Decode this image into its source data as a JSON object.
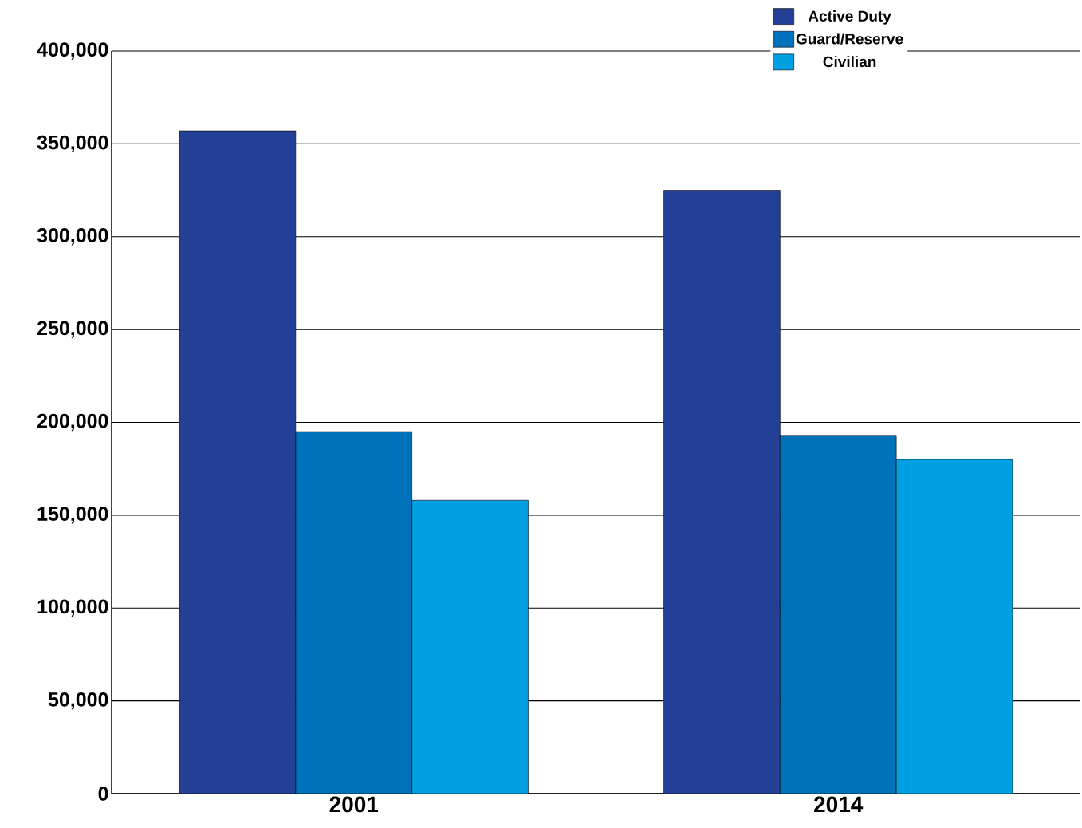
{
  "chart_data": {
    "type": "bar",
    "categories": [
      "2001",
      "2014"
    ],
    "series": [
      {
        "name": "Active Duty",
        "color": "#233f96",
        "values": [
          357000,
          325000
        ]
      },
      {
        "name": "Guard/Reserve",
        "color": "#0072bc",
        "values": [
          195000,
          193000
        ]
      },
      {
        "name": "Civilian",
        "color": "#00a0e3",
        "values": [
          158000,
          180000
        ]
      }
    ],
    "ylim": [
      0,
      400000
    ],
    "yticks": [
      0,
      {
        "value": 50000,
        "label": "50,000"
      },
      {
        "value": 100000,
        "label": "100,000"
      },
      {
        "value": 150000,
        "label": "150,000"
      },
      {
        "value": 200000,
        "label": "200,000"
      },
      {
        "value": 250000,
        "label": "250,000"
      },
      {
        "value": 300000,
        "label": "300,000"
      },
      {
        "value": 350000,
        "label": "350,000"
      },
      {
        "value": 400000,
        "label": "400,000"
      }
    ],
    "grid": "y",
    "legend": "top right"
  }
}
